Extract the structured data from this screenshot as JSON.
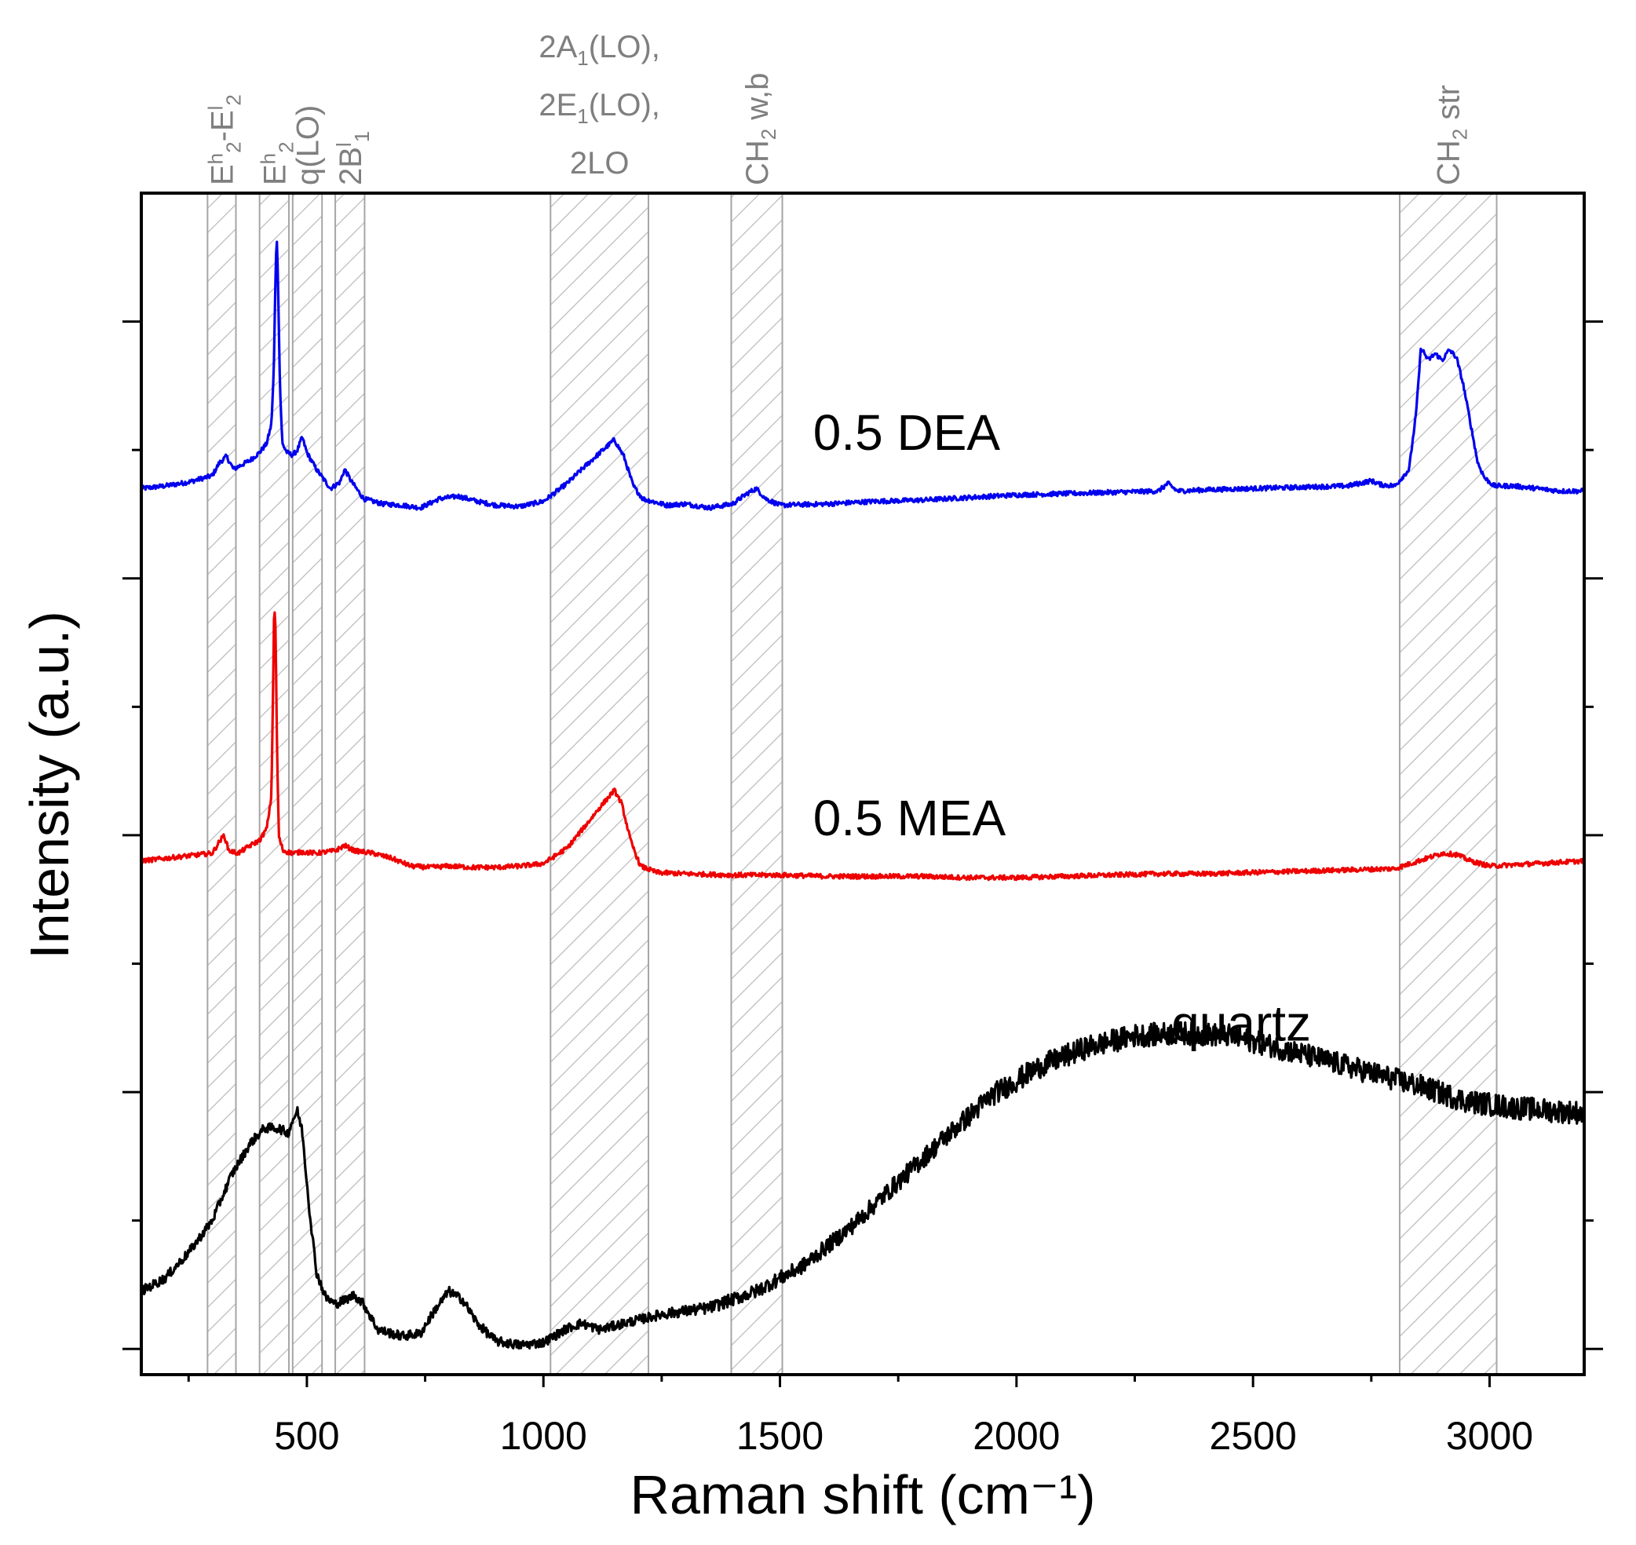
{
  "chart_data": {
    "type": "line",
    "title": "",
    "xlabel": "Raman shift (cm⁻¹)",
    "ylabel": "Intensity (a.u.)",
    "xlim": [
      150,
      3200
    ],
    "ylim": [
      -0.2,
      9.0
    ],
    "x_ticks": [
      500,
      1000,
      1500,
      2000,
      2500,
      3000
    ],
    "x_tick_labels": [
      "500",
      "1000",
      "1500",
      "2000",
      "2500",
      "3000"
    ],
    "y_tick_labels_shown": false,
    "grid": false,
    "bands": [
      {
        "name": "Eh2-El2",
        "range": [
          290,
          350
        ],
        "label_parts": [
          {
            "t": "E"
          },
          {
            "t": "h",
            "pos": "sup"
          },
          {
            "t": "2",
            "pos": "sub"
          },
          {
            "t": "-E"
          },
          {
            "t": "l",
            "pos": "sup"
          },
          {
            "t": "2",
            "pos": "sub"
          }
        ]
      },
      {
        "name": "Eh2",
        "range": [
          400,
          462
        ],
        "label_parts": [
          {
            "t": "E"
          },
          {
            "t": "h",
            "pos": "sup"
          },
          {
            "t": "2",
            "pos": "sub"
          }
        ]
      },
      {
        "name": "q(LO)",
        "range": [
          470,
          532
        ],
        "label_parts": [
          {
            "t": "q(LO)"
          }
        ]
      },
      {
        "name": "2Bl1",
        "range": [
          560,
          622
        ],
        "label_parts": [
          {
            "t": "2B"
          },
          {
            "t": "l",
            "pos": "sup"
          },
          {
            "t": "1",
            "pos": "sub"
          }
        ]
      },
      {
        "name": "2A1(LO), 2E1(LO), 2LO",
        "range": [
          1015,
          1222
        ],
        "label_lines": [
          [
            {
              "t": "2A"
            },
            {
              "t": "1",
              "pos": "sub"
            },
            {
              "t": "(LO),"
            }
          ],
          [
            {
              "t": "2E"
            },
            {
              "t": "1",
              "pos": "sub"
            },
            {
              "t": "(LO),"
            }
          ],
          [
            {
              "t": "2LO"
            }
          ]
        ]
      },
      {
        "name": "CH2 w,b",
        "range": [
          1397,
          1505
        ],
        "label_parts": [
          {
            "t": "CH"
          },
          {
            "t": "2",
            "pos": "sub"
          },
          {
            "t": " w,b"
          }
        ]
      },
      {
        "name": "CH2 str",
        "range": [
          2810,
          3015
        ],
        "label_parts": [
          {
            "t": "CH"
          },
          {
            "t": "2",
            "pos": "sub"
          },
          {
            "t": " str"
          }
        ]
      }
    ],
    "series": [
      {
        "name": "0.5 DEA",
        "color": "#0000ee",
        "label_at": [
          1570,
          7.0
        ],
        "label_anchor": "start",
        "points": [
          [
            150,
            6.7
          ],
          [
            200,
            6.72
          ],
          [
            250,
            6.75
          ],
          [
            300,
            6.8
          ],
          [
            315,
            6.9
          ],
          [
            330,
            6.95
          ],
          [
            345,
            6.85
          ],
          [
            360,
            6.88
          ],
          [
            380,
            6.92
          ],
          [
            400,
            6.98
          ],
          [
            415,
            7.05
          ],
          [
            425,
            7.2
          ],
          [
            430,
            7.6
          ],
          [
            433,
            8.2
          ],
          [
            436,
            8.7
          ],
          [
            439,
            8.3
          ],
          [
            443,
            7.5
          ],
          [
            448,
            7.05
          ],
          [
            458,
            6.98
          ],
          [
            470,
            6.96
          ],
          [
            480,
            7.0
          ],
          [
            490,
            7.1
          ],
          [
            500,
            6.98
          ],
          [
            520,
            6.85
          ],
          [
            550,
            6.7
          ],
          [
            570,
            6.75
          ],
          [
            580,
            6.85
          ],
          [
            595,
            6.75
          ],
          [
            620,
            6.62
          ],
          [
            660,
            6.58
          ],
          [
            700,
            6.57
          ],
          [
            740,
            6.55
          ],
          [
            780,
            6.62
          ],
          [
            820,
            6.64
          ],
          [
            860,
            6.6
          ],
          [
            900,
            6.57
          ],
          [
            950,
            6.56
          ],
          [
            1000,
            6.6
          ],
          [
            1050,
            6.74
          ],
          [
            1090,
            6.88
          ],
          [
            1120,
            6.98
          ],
          [
            1150,
            7.08
          ],
          [
            1170,
            6.95
          ],
          [
            1190,
            6.72
          ],
          [
            1210,
            6.62
          ],
          [
            1260,
            6.57
          ],
          [
            1300,
            6.58
          ],
          [
            1350,
            6.55
          ],
          [
            1400,
            6.58
          ],
          [
            1430,
            6.66
          ],
          [
            1450,
            6.7
          ],
          [
            1470,
            6.62
          ],
          [
            1500,
            6.57
          ],
          [
            1600,
            6.58
          ],
          [
            1700,
            6.6
          ],
          [
            1800,
            6.61
          ],
          [
            1900,
            6.63
          ],
          [
            2000,
            6.65
          ],
          [
            2100,
            6.66
          ],
          [
            2200,
            6.67
          ],
          [
            2300,
            6.68
          ],
          [
            2320,
            6.74
          ],
          [
            2340,
            6.68
          ],
          [
            2400,
            6.69
          ],
          [
            2500,
            6.7
          ],
          [
            2600,
            6.71
          ],
          [
            2700,
            6.72
          ],
          [
            2750,
            6.76
          ],
          [
            2770,
            6.73
          ],
          [
            2800,
            6.72
          ],
          [
            2830,
            6.85
          ],
          [
            2845,
            7.3
          ],
          [
            2855,
            7.8
          ],
          [
            2870,
            7.7
          ],
          [
            2885,
            7.75
          ],
          [
            2900,
            7.7
          ],
          [
            2915,
            7.78
          ],
          [
            2930,
            7.72
          ],
          [
            2945,
            7.5
          ],
          [
            2960,
            7.2
          ],
          [
            2975,
            6.9
          ],
          [
            2990,
            6.78
          ],
          [
            3010,
            6.72
          ],
          [
            3050,
            6.72
          ],
          [
            3100,
            6.7
          ],
          [
            3150,
            6.68
          ],
          [
            3200,
            6.68
          ]
        ]
      },
      {
        "name": "0.5 MEA",
        "color": "#ee0000",
        "label_at": [
          1570,
          4.0
        ],
        "label_anchor": "start",
        "points": [
          [
            150,
            3.8
          ],
          [
            200,
            3.82
          ],
          [
            250,
            3.84
          ],
          [
            300,
            3.86
          ],
          [
            315,
            3.95
          ],
          [
            325,
            4.0
          ],
          [
            335,
            3.88
          ],
          [
            355,
            3.86
          ],
          [
            380,
            3.92
          ],
          [
            400,
            3.96
          ],
          [
            415,
            4.05
          ],
          [
            425,
            4.3
          ],
          [
            428,
            5.0
          ],
          [
            431,
            5.8
          ],
          [
            434,
            5.6
          ],
          [
            437,
            4.6
          ],
          [
            441,
            3.98
          ],
          [
            450,
            3.88
          ],
          [
            470,
            3.86
          ],
          [
            490,
            3.87
          ],
          [
            520,
            3.86
          ],
          [
            560,
            3.88
          ],
          [
            580,
            3.92
          ],
          [
            600,
            3.88
          ],
          [
            640,
            3.86
          ],
          [
            680,
            3.82
          ],
          [
            720,
            3.76
          ],
          [
            760,
            3.75
          ],
          [
            800,
            3.76
          ],
          [
            850,
            3.75
          ],
          [
            900,
            3.75
          ],
          [
            950,
            3.76
          ],
          [
            1000,
            3.78
          ],
          [
            1050,
            3.9
          ],
          [
            1090,
            4.08
          ],
          [
            1120,
            4.22
          ],
          [
            1150,
            4.35
          ],
          [
            1165,
            4.25
          ],
          [
            1185,
            3.95
          ],
          [
            1205,
            3.76
          ],
          [
            1240,
            3.71
          ],
          [
            1300,
            3.7
          ],
          [
            1400,
            3.69
          ],
          [
            1500,
            3.69
          ],
          [
            1600,
            3.68
          ],
          [
            1700,
            3.68
          ],
          [
            1800,
            3.68
          ],
          [
            1900,
            3.67
          ],
          [
            2000,
            3.67
          ],
          [
            2100,
            3.68
          ],
          [
            2200,
            3.69
          ],
          [
            2300,
            3.7
          ],
          [
            2400,
            3.7
          ],
          [
            2500,
            3.71
          ],
          [
            2600,
            3.72
          ],
          [
            2700,
            3.73
          ],
          [
            2800,
            3.74
          ],
          [
            2850,
            3.8
          ],
          [
            2900,
            3.86
          ],
          [
            2930,
            3.85
          ],
          [
            2960,
            3.8
          ],
          [
            3000,
            3.76
          ],
          [
            3100,
            3.78
          ],
          [
            3200,
            3.8
          ]
        ]
      },
      {
        "name": "quartz",
        "color": "#000000",
        "label_at": [
          2475,
          2.4
        ],
        "label_anchor": "middle",
        "points": [
          [
            150,
            0.45
          ],
          [
            200,
            0.55
          ],
          [
            250,
            0.75
          ],
          [
            300,
            1.0
          ],
          [
            340,
            1.35
          ],
          [
            380,
            1.6
          ],
          [
            410,
            1.72
          ],
          [
            440,
            1.72
          ],
          [
            460,
            1.68
          ],
          [
            472,
            1.8
          ],
          [
            480,
            1.85
          ],
          [
            490,
            1.7
          ],
          [
            505,
            1.1
          ],
          [
            520,
            0.6
          ],
          [
            540,
            0.4
          ],
          [
            560,
            0.35
          ],
          [
            580,
            0.38
          ],
          [
            600,
            0.42
          ],
          [
            620,
            0.35
          ],
          [
            650,
            0.15
          ],
          [
            700,
            0.1
          ],
          [
            740,
            0.12
          ],
          [
            770,
            0.3
          ],
          [
            800,
            0.45
          ],
          [
            830,
            0.38
          ],
          [
            860,
            0.2
          ],
          [
            900,
            0.06
          ],
          [
            950,
            0.03
          ],
          [
            1000,
            0.05
          ],
          [
            1050,
            0.16
          ],
          [
            1080,
            0.2
          ],
          [
            1120,
            0.15
          ],
          [
            1170,
            0.2
          ],
          [
            1250,
            0.27
          ],
          [
            1350,
            0.32
          ],
          [
            1450,
            0.45
          ],
          [
            1550,
            0.65
          ],
          [
            1650,
            0.95
          ],
          [
            1750,
            1.3
          ],
          [
            1850,
            1.65
          ],
          [
            1950,
            1.98
          ],
          [
            2050,
            2.2
          ],
          [
            2150,
            2.35
          ],
          [
            2250,
            2.44
          ],
          [
            2350,
            2.46
          ],
          [
            2450,
            2.44
          ],
          [
            2550,
            2.35
          ],
          [
            2650,
            2.25
          ],
          [
            2750,
            2.15
          ],
          [
            2850,
            2.05
          ],
          [
            2950,
            1.93
          ],
          [
            3050,
            1.88
          ],
          [
            3150,
            1.85
          ],
          [
            3200,
            1.84
          ]
        ]
      }
    ]
  }
}
